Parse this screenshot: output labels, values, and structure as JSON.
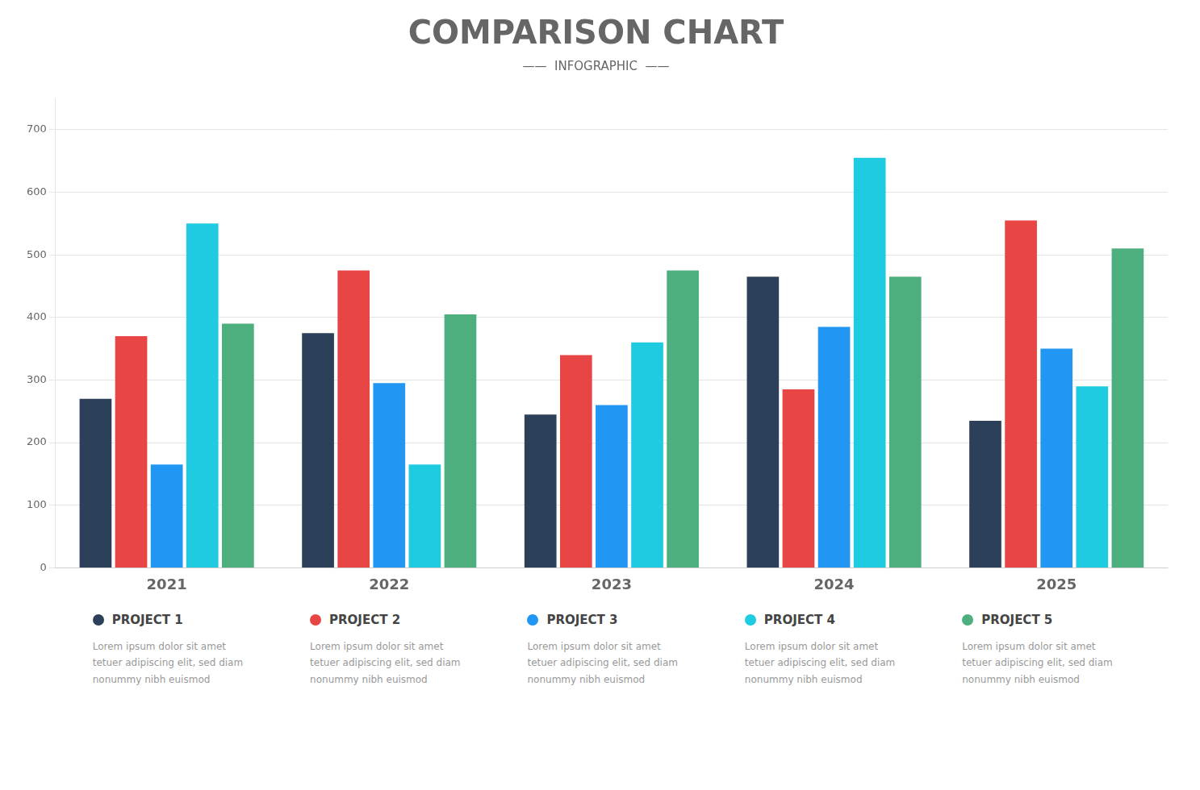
{
  "chart_data": {
    "type": "bar",
    "title": "COMPARISON CHART",
    "subtitle": "——  INFOGRAPHIC  ——",
    "categories": [
      "2021",
      "2022",
      "2023",
      "2024",
      "2025"
    ],
    "series": [
      {
        "name": "PROJECT 1",
        "color": "#2d4059",
        "values": [
          270,
          375,
          245,
          465,
          235
        ]
      },
      {
        "name": "PROJECT 2",
        "color": "#e84545",
        "values": [
          370,
          475,
          340,
          285,
          555
        ]
      },
      {
        "name": "PROJECT 3",
        "color": "#2196f3",
        "values": [
          165,
          295,
          260,
          385,
          350
        ]
      },
      {
        "name": "PROJECT 4",
        "color": "#1ecbe1",
        "values": [
          550,
          165,
          360,
          655,
          290
        ]
      },
      {
        "name": "PROJECT 5",
        "color": "#4caf7d",
        "values": [
          390,
          405,
          475,
          465,
          510
        ]
      }
    ],
    "annotations": [
      "Lorem ipsum dolor sit amet\ntetuer adipiscing elit, sed diam\nnonummy nibh euismod",
      "Lorem ipsum dolor sit amet\ntetuer adipiscing elit, sed diam\nnonummy nibh euismod",
      "Lorem ipsum dolor sit amet\ntetuer adipiscing elit, sed diam\nnonummy nibh euismod",
      "Lorem ipsum dolor sit amet\ntetuer adipiscing elit, sed diam\nnonummy nibh euismod",
      "Lorem ipsum dolor sit amet\ntetuer adipiscing elit, sed diam\nnonummy nibh euismod"
    ],
    "ylim": [
      0,
      750
    ],
    "yticks": [
      0,
      100,
      200,
      300,
      400,
      500,
      600,
      700
    ],
    "grid": true,
    "legend": "bottom"
  }
}
